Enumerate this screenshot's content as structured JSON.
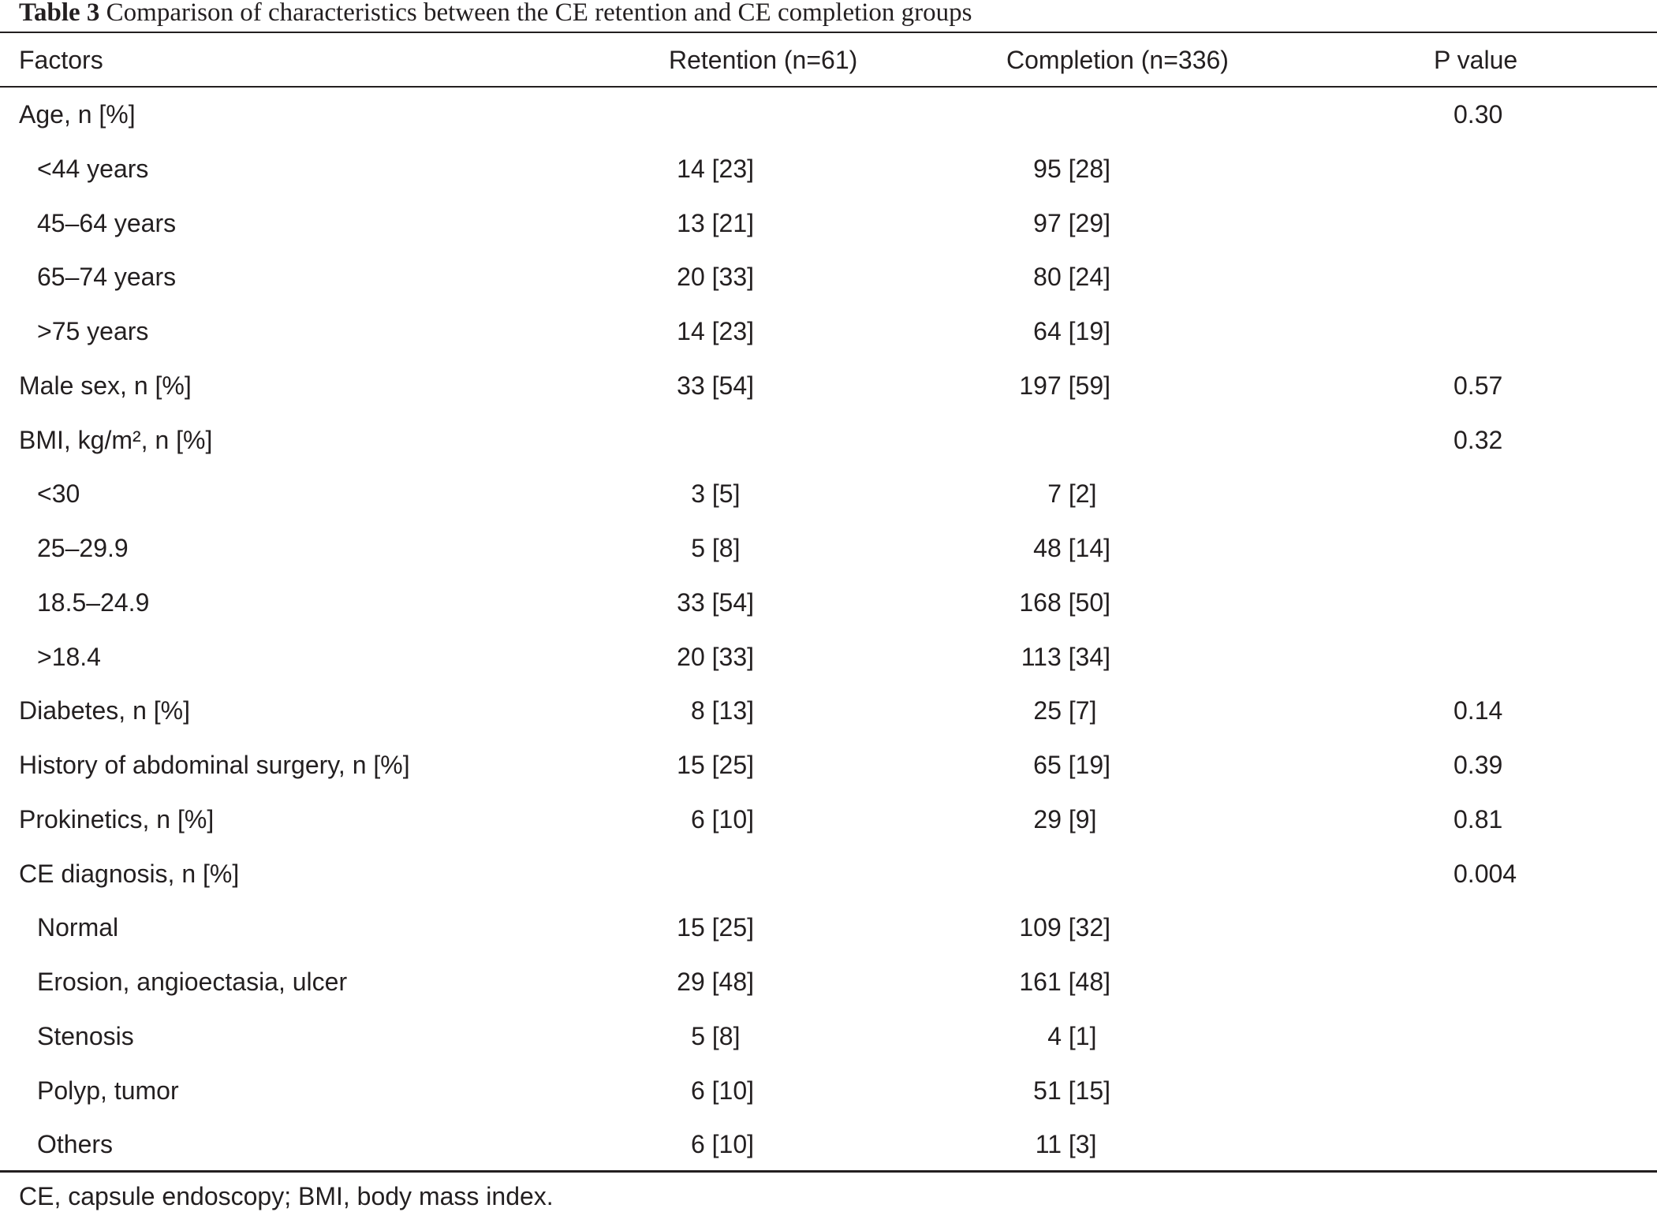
{
  "caption": {
    "label": "Table 3",
    "text": "Comparison of characteristics between the CE retention and CE completion groups"
  },
  "headers": [
    "Factors",
    "Retention (n=61)",
    "Completion (n=336)",
    "P value"
  ],
  "rows": [
    {
      "factor": "Age, n [%]",
      "retention": "",
      "completion": "",
      "p": "0.30",
      "indent": false
    },
    {
      "factor": "<44 years",
      "retention": "14 [23]",
      "completion": "95 [28]",
      "p": "",
      "indent": true
    },
    {
      "factor": "45–64 years",
      "retention": "13 [21]",
      "completion": "97 [29]",
      "p": "",
      "indent": true
    },
    {
      "factor": "65–74 years",
      "retention": "20 [33]",
      "completion": "80 [24]",
      "p": "",
      "indent": true
    },
    {
      "factor": ">75 years",
      "retention": "14 [23]",
      "completion": "64 [19]",
      "p": "",
      "indent": true
    },
    {
      "factor": "Male sex, n [%]",
      "retention": "33 [54]",
      "completion": "197 [59]",
      "p": "0.57",
      "indent": false
    },
    {
      "factor": "BMI, kg/m², n [%]",
      "retention": "",
      "completion": "",
      "p": "0.32",
      "indent": false
    },
    {
      "factor": "<30",
      "retention": "3 [5]",
      "completion": "7 [2]",
      "p": "",
      "indent": true
    },
    {
      "factor": "25–29.9",
      "retention": "5 [8]",
      "completion": "48 [14]",
      "p": "",
      "indent": true
    },
    {
      "factor": "18.5–24.9",
      "retention": "33 [54]",
      "completion": "168 [50]",
      "p": "",
      "indent": true
    },
    {
      "factor": ">18.4",
      "retention": "20 [33]",
      "completion": "113 [34]",
      "p": "",
      "indent": true
    },
    {
      "factor": "Diabetes, n [%]",
      "retention": "8 [13]",
      "completion": "25 [7]",
      "p": "0.14",
      "indent": false
    },
    {
      "factor": "History of abdominal surgery, n [%]",
      "retention": "15 [25]",
      "completion": "65 [19]",
      "p": "0.39",
      "indent": false
    },
    {
      "factor": "Prokinetics, n [%]",
      "retention": "6 [10]",
      "completion": "29 [9]",
      "p": "0.81",
      "indent": false
    },
    {
      "factor": "CE diagnosis, n [%]",
      "retention": "",
      "completion": "",
      "p": "0.004",
      "indent": false
    },
    {
      "factor": "Normal",
      "retention": "15 [25]",
      "completion": "109 [32]",
      "p": "",
      "indent": true
    },
    {
      "factor": "Erosion, angioectasia, ulcer",
      "retention": "29 [48]",
      "completion": "161 [48]",
      "p": "",
      "indent": true
    },
    {
      "factor": "Stenosis",
      "retention": "5 [8]",
      "completion": "4 [1]",
      "p": "",
      "indent": true
    },
    {
      "factor": "Polyp, tumor",
      "retention": "6 [10]",
      "completion": "51 [15]",
      "p": "",
      "indent": true
    },
    {
      "factor": "Others",
      "retention": "6 [10]",
      "completion": "11 [3]",
      "p": "",
      "indent": true
    }
  ],
  "footnote": "CE, capsule endoscopy; BMI, body mass index."
}
